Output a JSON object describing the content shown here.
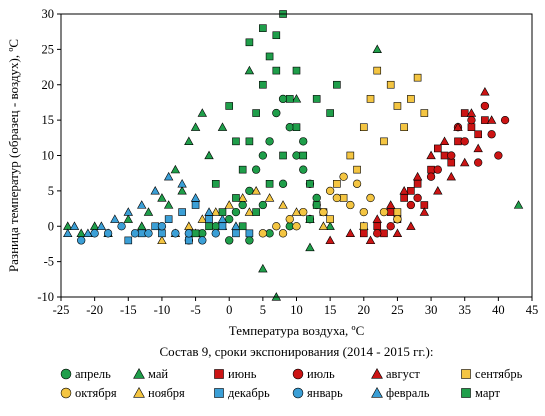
{
  "chart_data": {
    "type": "scatter",
    "title": "",
    "subtitle": "Состав 9, сроки экспонирования (2014 - 2015 гг.):",
    "xlabel": "Температура воздуха, ºC",
    "ylabel": "Разница температур (образец - воздух), ºC",
    "xlim": [
      -25,
      45
    ],
    "ylim": [
      -10,
      30
    ],
    "xticks": [
      "-25",
      "-20",
      "-15",
      "-10",
      "-5",
      "0",
      "5",
      "10",
      "15",
      "20",
      "25",
      "30",
      "35",
      "40",
      "45"
    ],
    "yticks": [
      "-10",
      "-5",
      "0",
      "5",
      "10",
      "15",
      "20",
      "25",
      "30"
    ],
    "grid": false,
    "legend_position": "bottom",
    "series": [
      {
        "name": "апрель",
        "marker": "circle",
        "color": "#1f9e4a",
        "points": [
          [
            -6,
            -2
          ],
          [
            -4,
            -1
          ],
          [
            -2,
            0
          ],
          [
            0,
            1
          ],
          [
            1,
            2
          ],
          [
            2,
            3
          ],
          [
            3,
            5
          ],
          [
            4,
            8
          ],
          [
            5,
            10
          ],
          [
            6,
            12
          ],
          [
            7,
            16
          ],
          [
            8,
            18
          ],
          [
            9,
            14
          ],
          [
            10,
            10
          ],
          [
            11,
            8
          ],
          [
            12,
            6
          ],
          [
            13,
            4
          ],
          [
            9,
            0
          ],
          [
            6,
            -1
          ],
          [
            3,
            -2
          ],
          [
            0,
            -2
          ],
          [
            5,
            3
          ],
          [
            8,
            6
          ],
          [
            11,
            12
          ]
        ],
        "region": {
          "xmin": -10,
          "xmax": 14,
          "ymin": -3,
          "ymax": 18,
          "count": 0
        }
      },
      {
        "name": "май",
        "marker": "triangle",
        "color": "#1f9e4a",
        "points": [
          [
            -24,
            0
          ],
          [
            -22,
            -1
          ],
          [
            -20,
            0
          ],
          [
            -18,
            -1
          ],
          [
            -15,
            1
          ],
          [
            -12,
            2
          ],
          [
            -10,
            4
          ],
          [
            -8,
            8
          ],
          [
            -6,
            12
          ],
          [
            -5,
            14
          ],
          [
            -4,
            16
          ],
          [
            -3,
            10
          ],
          [
            -7,
            5
          ],
          [
            -9,
            3
          ],
          [
            5,
            -6
          ],
          [
            7,
            -10
          ],
          [
            12,
            -3
          ],
          [
            15,
            0
          ],
          [
            22,
            25
          ],
          [
            43,
            3
          ],
          [
            10,
            18
          ],
          [
            3,
            22
          ],
          [
            -1,
            14
          ],
          [
            -13,
            0
          ]
        ],
        "region": {
          "xmin": -24,
          "xmax": 14,
          "ymin": -3,
          "ymax": 20,
          "count": 0
        }
      },
      {
        "name": "июнь",
        "marker": "square",
        "color": "#cc1414",
        "points": [
          [
            20,
            -1
          ],
          [
            22,
            0
          ],
          [
            24,
            2
          ],
          [
            26,
            4
          ],
          [
            28,
            6
          ],
          [
            30,
            8
          ],
          [
            32,
            10
          ],
          [
            34,
            12
          ],
          [
            36,
            14
          ],
          [
            38,
            15
          ],
          [
            25,
            1
          ],
          [
            29,
            3
          ],
          [
            33,
            9
          ],
          [
            37,
            13
          ],
          [
            35,
            16
          ],
          [
            31,
            11
          ],
          [
            27,
            5
          ],
          [
            23,
            -1
          ]
        ],
        "region": {
          "xmin": 19,
          "xmax": 40,
          "ymin": -2,
          "ymax": 17,
          "count": 0
        }
      },
      {
        "name": "июль",
        "marker": "circle",
        "color": "#cc1414",
        "points": [
          [
            22,
            -1
          ],
          [
            25,
            1
          ],
          [
            28,
            4
          ],
          [
            30,
            7
          ],
          [
            33,
            10
          ],
          [
            35,
            12
          ],
          [
            37,
            9
          ],
          [
            39,
            13
          ],
          [
            40,
            10
          ],
          [
            41,
            15
          ],
          [
            38,
            17
          ],
          [
            36,
            15
          ],
          [
            34,
            14
          ],
          [
            31,
            8
          ],
          [
            27,
            3
          ],
          [
            24,
            0
          ]
        ],
        "region": {
          "xmin": 20,
          "xmax": 41,
          "ymin": -2,
          "ymax": 18,
          "count": 0
        }
      },
      {
        "name": "август",
        "marker": "triangle",
        "color": "#cc1414",
        "points": [
          [
            15,
            -2
          ],
          [
            18,
            -1
          ],
          [
            20,
            0
          ],
          [
            22,
            1
          ],
          [
            24,
            3
          ],
          [
            26,
            5
          ],
          [
            28,
            7
          ],
          [
            30,
            10
          ],
          [
            32,
            12
          ],
          [
            34,
            14
          ],
          [
            36,
            16
          ],
          [
            38,
            19
          ],
          [
            39,
            15
          ],
          [
            37,
            11
          ],
          [
            35,
            9
          ],
          [
            33,
            7
          ],
          [
            31,
            5
          ],
          [
            29,
            2
          ],
          [
            27,
            0
          ],
          [
            25,
            -1
          ],
          [
            21,
            -2
          ]
        ],
        "region": {
          "xmin": 14,
          "xmax": 40,
          "ymin": -3,
          "ymax": 19,
          "count": 0
        }
      },
      {
        "name": "сентябрь",
        "marker": "square",
        "color": "#f4c542",
        "points": [
          [
            14,
            2
          ],
          [
            16,
            6
          ],
          [
            18,
            10
          ],
          [
            20,
            14
          ],
          [
            21,
            18
          ],
          [
            22,
            22
          ],
          [
            24,
            20
          ],
          [
            25,
            17
          ],
          [
            26,
            14
          ],
          [
            27,
            18
          ],
          [
            28,
            21
          ],
          [
            29,
            16
          ],
          [
            23,
            12
          ],
          [
            19,
            8
          ],
          [
            17,
            4
          ],
          [
            15,
            1
          ],
          [
            20,
            0
          ],
          [
            25,
            2
          ]
        ],
        "region": {
          "xmin": 12,
          "xmax": 30,
          "ymin": -1,
          "ymax": 23,
          "count": 0
        }
      },
      {
        "name": "октября",
        "marker": "circle",
        "color": "#f4c542",
        "points": [
          [
            5,
            -1
          ],
          [
            7,
            0
          ],
          [
            9,
            1
          ],
          [
            11,
            2
          ],
          [
            13,
            3
          ],
          [
            15,
            5
          ],
          [
            17,
            7
          ],
          [
            19,
            6
          ],
          [
            21,
            4
          ],
          [
            23,
            2
          ],
          [
            25,
            1
          ],
          [
            18,
            3
          ],
          [
            14,
            2
          ],
          [
            10,
            0
          ],
          [
            8,
            -1
          ],
          [
            12,
            1
          ],
          [
            16,
            4
          ],
          [
            20,
            2
          ]
        ],
        "region": {
          "xmin": 4,
          "xmax": 26,
          "ymin": -2,
          "ymax": 8,
          "count": 0
        }
      },
      {
        "name": "ноября",
        "marker": "triangle",
        "color": "#f4c542",
        "points": [
          [
            -10,
            -2
          ],
          [
            -8,
            -1
          ],
          [
            -6,
            0
          ],
          [
            -4,
            1
          ],
          [
            -2,
            2
          ],
          [
            0,
            3
          ],
          [
            2,
            4
          ],
          [
            4,
            5
          ],
          [
            6,
            4
          ],
          [
            8,
            3
          ],
          [
            10,
            2
          ],
          [
            12,
            1
          ],
          [
            14,
            0
          ],
          [
            3,
            2
          ],
          [
            -1,
            0
          ],
          [
            -5,
            -1
          ]
        ],
        "region": {
          "xmin": -11,
          "xmax": 15,
          "ymin": -3,
          "ymax": 6,
          "count": 0
        }
      },
      {
        "name": "декабрь",
        "marker": "square",
        "color": "#3b9fd6",
        "points": [
          [
            -15,
            -2
          ],
          [
            -13,
            -1
          ],
          [
            -11,
            0
          ],
          [
            -9,
            1
          ],
          [
            -7,
            2
          ],
          [
            -5,
            3
          ],
          [
            -3,
            1
          ],
          [
            -1,
            0
          ],
          [
            1,
            -1
          ],
          [
            3,
            -1
          ],
          [
            -6,
            -2
          ],
          [
            -10,
            -1
          ]
        ],
        "region": {
          "xmin": -16,
          "xmax": 4,
          "ymin": -3,
          "ymax": 4,
          "count": 0
        }
      },
      {
        "name": "январь",
        "marker": "circle",
        "color": "#3b9fd6",
        "points": [
          [
            -22,
            -2
          ],
          [
            -20,
            -1
          ],
          [
            -18,
            -1
          ],
          [
            -16,
            0
          ],
          [
            -14,
            -1
          ],
          [
            -12,
            -1
          ],
          [
            -10,
            0
          ],
          [
            -8,
            -1
          ],
          [
            -6,
            -1
          ],
          [
            -4,
            -2
          ],
          [
            -2,
            -1
          ]
        ],
        "region": {
          "xmin": -23,
          "xmax": 0,
          "ymin": -2,
          "ymax": 1,
          "count": 0
        }
      },
      {
        "name": "февраль",
        "marker": "triangle",
        "color": "#3b9fd6",
        "points": [
          [
            -24,
            -1
          ],
          [
            -23,
            0
          ],
          [
            -21,
            -1
          ],
          [
            -19,
            0
          ],
          [
            -17,
            1
          ],
          [
            -15,
            2
          ],
          [
            -13,
            3
          ],
          [
            -11,
            5
          ],
          [
            -9,
            7
          ],
          [
            -7,
            6
          ],
          [
            -5,
            4
          ],
          [
            -3,
            2
          ],
          [
            -1,
            1
          ],
          [
            1,
            0
          ]
        ],
        "region": {
          "xmin": -24,
          "xmax": 2,
          "ymin": -2,
          "ymax": 8,
          "count": 0
        }
      },
      {
        "name": "март",
        "marker": "square",
        "color": "#1f9e4a",
        "points": [
          [
            -5,
            -1
          ],
          [
            -3,
            0
          ],
          [
            -1,
            2
          ],
          [
            1,
            4
          ],
          [
            2,
            8
          ],
          [
            3,
            12
          ],
          [
            4,
            16
          ],
          [
            5,
            20
          ],
          [
            6,
            24
          ],
          [
            7,
            27
          ],
          [
            8,
            30
          ],
          [
            7,
            22
          ],
          [
            9,
            18
          ],
          [
            10,
            14
          ],
          [
            11,
            10
          ],
          [
            12,
            6
          ],
          [
            13,
            3
          ],
          [
            2,
            0
          ],
          [
            4,
            2
          ],
          [
            6,
            6
          ],
          [
            8,
            10
          ],
          [
            0,
            17
          ],
          [
            3,
            26
          ],
          [
            5,
            28
          ],
          [
            13,
            18
          ],
          [
            15,
            16
          ],
          [
            16,
            20
          ],
          [
            10,
            22
          ],
          [
            1,
            12
          ],
          [
            -2,
            6
          ],
          [
            12,
            1
          ]
        ],
        "region": {
          "xmin": -6,
          "xmax": 16,
          "ymin": -2,
          "ymax": 30,
          "count": 0
        }
      }
    ]
  }
}
